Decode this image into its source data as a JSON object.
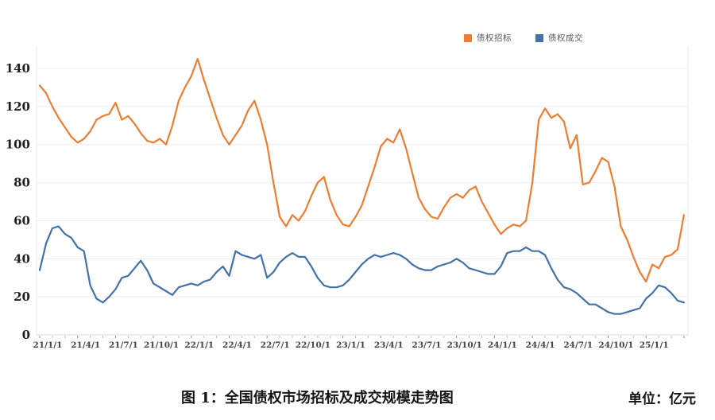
{
  "figure": {
    "caption": "图 1：全国债权市场招标及成交规模走势图",
    "unit_label": "单位：亿元"
  },
  "chart_data": {
    "type": "line",
    "title": "全国债权市场招标及成交规模走势图",
    "unit": "亿元",
    "grid": "horizontal",
    "legend_position": "top-center",
    "ylim": [
      0,
      140
    ],
    "y_ticks": [
      0,
      20,
      40,
      60,
      80,
      100,
      120,
      140
    ],
    "x_tick_labels": [
      "21/1/1",
      "21/4/1",
      "21/7/1",
      "21/10/1",
      "22/1/1",
      "22/4/1",
      "22/7/1",
      "22/10/1",
      "23/1/1",
      "23/4/1",
      "23/7/1",
      "23/10/1",
      "24/1/1",
      "24/4/1",
      "24/7/1",
      "24/10/1",
      "25/1/1"
    ],
    "x_tick_indices": [
      0,
      6,
      12,
      18,
      24,
      30,
      36,
      42,
      48,
      54,
      60,
      66,
      72,
      78,
      84,
      90,
      96
    ],
    "x_sampling": "two samples per month, 2021-01-01 through 2025-03, values estimated from plot",
    "series": [
      {
        "name": "债权招标",
        "color": "#ED7D31",
        "values": [
          131,
          127,
          120,
          114,
          109,
          104,
          101,
          103,
          107,
          113,
          115,
          116,
          122,
          113,
          115,
          111,
          106,
          102,
          101,
          103,
          100,
          110,
          123,
          130,
          136,
          145,
          134,
          124,
          114,
          105,
          100,
          105,
          110,
          118,
          123,
          113,
          100,
          80,
          62,
          57,
          63,
          60,
          65,
          73,
          80,
          83,
          71,
          63,
          58,
          57,
          62,
          68,
          78,
          88,
          99,
          103,
          101,
          108,
          98,
          85,
          72,
          66,
          62,
          61,
          67,
          72,
          74,
          72,
          76,
          78,
          70,
          64,
          58,
          53,
          56,
          58,
          57,
          60,
          80,
          113,
          119,
          114,
          116,
          112,
          98,
          105,
          79,
          80,
          86,
          93,
          91,
          78,
          57,
          50,
          41,
          33,
          28,
          37,
          35,
          41,
          42,
          45,
          63
        ]
      },
      {
        "name": "债权成交",
        "color": "#4472A8",
        "values": [
          34,
          48,
          56,
          57,
          53,
          51,
          46,
          44,
          26,
          19,
          17,
          20,
          24,
          30,
          31,
          35,
          39,
          34,
          27,
          25,
          23,
          21,
          25,
          26,
          27,
          26,
          28,
          29,
          33,
          36,
          31,
          44,
          42,
          41,
          40,
          42,
          30,
          33,
          38,
          41,
          43,
          41,
          41,
          36,
          30,
          26,
          25,
          25,
          26,
          29,
          33,
          37,
          40,
          42,
          41,
          42,
          43,
          42,
          40,
          37,
          35,
          34,
          34,
          36,
          37,
          38,
          40,
          38,
          35,
          34,
          33,
          32,
          32,
          36,
          43,
          44,
          44,
          46,
          44,
          44,
          42,
          35,
          29,
          25,
          24,
          22,
          19,
          16,
          16,
          14,
          12,
          11,
          11,
          12,
          13,
          14,
          19,
          22,
          26,
          25,
          22,
          18,
          17
        ]
      }
    ]
  }
}
